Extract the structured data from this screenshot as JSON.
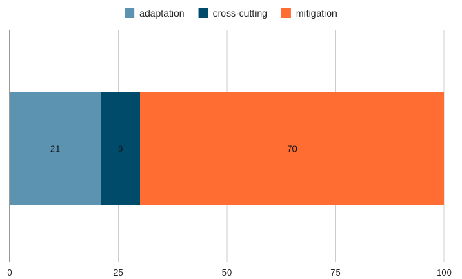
{
  "chart_data": {
    "type": "bar",
    "orientation": "horizontal",
    "stacked": true,
    "categories": [
      ""
    ],
    "series": [
      {
        "name": "adaptation",
        "values": [
          21
        ],
        "color": "#5b93b1"
      },
      {
        "name": "cross-cutting",
        "values": [
          9
        ],
        "color": "#004a6a"
      },
      {
        "name": "mitigation",
        "values": [
          70
        ],
        "color": "#ff6d33"
      }
    ],
    "xlim": [
      0,
      100
    ],
    "x_ticks": [
      0,
      25,
      50,
      75,
      100
    ],
    "grid": true,
    "legend_position": "top-center",
    "data_labels": true
  }
}
